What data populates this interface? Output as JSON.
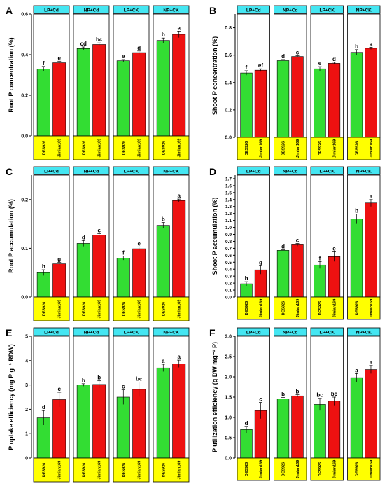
{
  "colors": {
    "green": "#33dd33",
    "red": "#ee1111",
    "header": "#44e6f2",
    "footer": "#ffff00"
  },
  "categories": [
    "DES926",
    "Jimian169"
  ],
  "chart_data": [
    {
      "type": "bar",
      "panel": "A",
      "ylabel": "Root P concentration (%)",
      "ylim": [
        0,
        0.6
      ],
      "yticks": [
        "0.0",
        "0.2",
        "0.4",
        "0.6"
      ],
      "groups": [
        {
          "label": "LP+Cd",
          "values": [
            0.33,
            0.36
          ],
          "errors": [
            0.012,
            0.008
          ],
          "letters": [
            "f",
            "e"
          ]
        },
        {
          "label": "NP+Cd",
          "values": [
            0.43,
            0.45
          ],
          "errors": [
            0.008,
            0.008
          ],
          "letters": [
            "cd",
            "bc"
          ]
        },
        {
          "label": "LP+CK",
          "values": [
            0.37,
            0.41
          ],
          "errors": [
            0.006,
            0.008
          ],
          "letters": [
            "e",
            "d"
          ]
        },
        {
          "label": "NP+CK",
          "values": [
            0.47,
            0.5
          ],
          "errors": [
            0.012,
            0.016
          ],
          "letters": [
            "b",
            "a"
          ]
        }
      ]
    },
    {
      "type": "bar",
      "panel": "B",
      "ylabel": "Shoot P concentration (%)",
      "ylim": [
        0,
        0.9
      ],
      "yticks": [
        "0.0",
        "0.2",
        "0.4",
        "0.6",
        "0.8"
      ],
      "groups": [
        {
          "label": "LP+Cd",
          "values": [
            0.47,
            0.49
          ],
          "errors": [
            0.016,
            0.01
          ],
          "letters": [
            "f",
            "ef"
          ]
        },
        {
          "label": "NP+Cd",
          "values": [
            0.56,
            0.59
          ],
          "errors": [
            0.008,
            0.006
          ],
          "letters": [
            "d",
            "c"
          ]
        },
        {
          "label": "LP+CK",
          "values": [
            0.5,
            0.54
          ],
          "errors": [
            0.016,
            0.008
          ],
          "letters": [
            "e",
            "d"
          ]
        },
        {
          "label": "NP+CK",
          "values": [
            0.62,
            0.65
          ],
          "errors": [
            0.02,
            0.008
          ],
          "letters": [
            "b",
            "a"
          ]
        }
      ]
    },
    {
      "type": "bar",
      "panel": "C",
      "ylabel": "Root P accumulation (%)",
      "ylim": [
        0,
        0.25
      ],
      "yticks": [
        "0.0",
        "0.1",
        "0.2"
      ],
      "groups": [
        {
          "label": "LP+Cd",
          "values": [
            0.05,
            0.068
          ],
          "errors": [
            0.006,
            0.003
          ],
          "letters": [
            "h",
            "g"
          ]
        },
        {
          "label": "NP+Cd",
          "values": [
            0.11,
            0.127
          ],
          "errors": [
            0.006,
            0.003
          ],
          "letters": [
            "d",
            "c"
          ]
        },
        {
          "label": "LP+CK",
          "values": [
            0.08,
            0.099
          ],
          "errors": [
            0.004,
            0.004
          ],
          "letters": [
            "f",
            "e"
          ]
        },
        {
          "label": "NP+CK",
          "values": [
            0.147,
            0.198
          ],
          "errors": [
            0.006,
            0.003
          ],
          "letters": [
            "b",
            "a"
          ]
        }
      ]
    },
    {
      "type": "bar",
      "panel": "D",
      "ylabel": "Shoot P accumulation (%)",
      "ylim": [
        0,
        1.75
      ],
      "yticks": [
        "0.0",
        "0.1",
        "0.2",
        "0.3",
        "0.4",
        "0.5",
        "0.6",
        "0.7",
        "0.8",
        "0.9",
        "1.0",
        "1.1",
        "1.2",
        "1.3",
        "1.4",
        "1.5",
        "1.6",
        "1.7"
      ],
      "groups": [
        {
          "label": "LP+Cd",
          "values": [
            0.19,
            0.39
          ],
          "errors": [
            0.03,
            0.06
          ],
          "letters": [
            "h",
            "g"
          ]
        },
        {
          "label": "NP+Cd",
          "values": [
            0.67,
            0.75
          ],
          "errors": [
            0.01,
            0.02
          ],
          "letters": [
            "d",
            "c"
          ]
        },
        {
          "label": "LP+CK",
          "values": [
            0.46,
            0.58
          ],
          "errors": [
            0.05,
            0.07
          ],
          "letters": [
            "f",
            "e"
          ]
        },
        {
          "label": "NP+CK",
          "values": [
            1.12,
            1.35
          ],
          "errors": [
            0.07,
            0.05
          ],
          "letters": [
            "b",
            "a"
          ]
        }
      ]
    },
    {
      "type": "bar",
      "panel": "E",
      "ylabel": "P uptake efficiency (mg P g⁻¹ RDW)",
      "ylim": [
        0,
        5
      ],
      "yticks": [
        "0",
        "1",
        "2",
        "3",
        "4",
        "5"
      ],
      "groups": [
        {
          "label": "LP+Cd",
          "values": [
            1.65,
            2.4
          ],
          "errors": [
            0.3,
            0.3
          ],
          "letters": [
            "d",
            "c"
          ]
        },
        {
          "label": "NP+Cd",
          "values": [
            3.0,
            3.02
          ],
          "errors": [
            0.05,
            0.15
          ],
          "letters": [
            "b",
            "b"
          ]
        },
        {
          "label": "LP+CK",
          "values": [
            2.5,
            2.82
          ],
          "errors": [
            0.3,
            0.3
          ],
          "letters": [
            "c",
            "bc"
          ]
        },
        {
          "label": "NP+CK",
          "values": [
            3.7,
            3.87
          ],
          "errors": [
            0.15,
            0.15
          ],
          "letters": [
            "a",
            "a"
          ]
        }
      ]
    },
    {
      "type": "bar",
      "panel": "F",
      "ylabel": "P utilization efficiency (g DW mg⁻¹ P)",
      "ylim": [
        0,
        3
      ],
      "yticks": [
        "0.0",
        "0.5",
        "1.0",
        "1.5",
        "2.0",
        "2.5",
        "3.0"
      ],
      "groups": [
        {
          "label": "LP+Cd",
          "values": [
            0.7,
            1.17
          ],
          "errors": [
            0.08,
            0.2
          ],
          "letters": [
            "d",
            "c"
          ]
        },
        {
          "label": "NP+Cd",
          "values": [
            1.46,
            1.53
          ],
          "errors": [
            0.03,
            0.03
          ],
          "letters": [
            "b",
            "b"
          ]
        },
        {
          "label": "LP+CK",
          "values": [
            1.32,
            1.4
          ],
          "errors": [
            0.15,
            0.1
          ],
          "letters": [
            "bc",
            "bc"
          ]
        },
        {
          "label": "NP+CK",
          "values": [
            1.98,
            2.18
          ],
          "errors": [
            0.1,
            0.1
          ],
          "letters": [
            "a",
            "a"
          ]
        }
      ]
    }
  ]
}
